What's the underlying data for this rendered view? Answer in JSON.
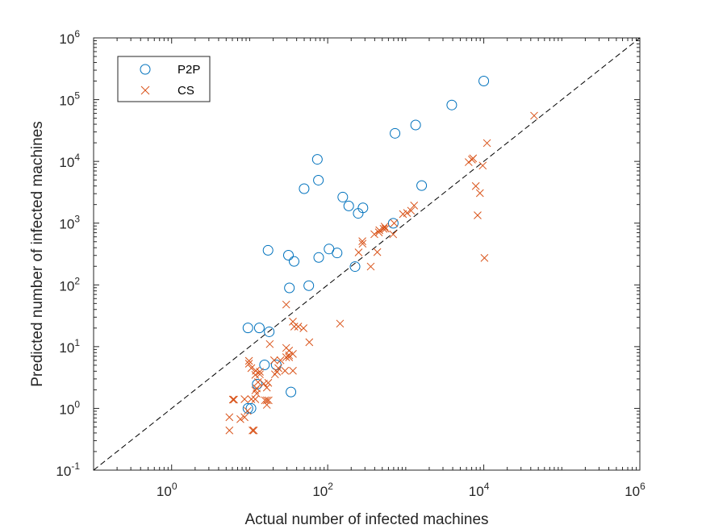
{
  "chart_data": {
    "type": "scatter",
    "title": "",
    "xlabel": "Actual number of infected machines",
    "ylabel": "Predicted number of infected machines",
    "xscale": "log",
    "yscale": "log",
    "xlim": [
      0.1,
      1000000
    ],
    "ylim": [
      0.1,
      1000000
    ],
    "x_tick_labels": [
      {
        "value": 1,
        "base": "10",
        "exp": "0"
      },
      {
        "value": 100,
        "base": "10",
        "exp": "2"
      },
      {
        "value": 10000,
        "base": "10",
        "exp": "4"
      },
      {
        "value": 1000000,
        "base": "10",
        "exp": "6"
      }
    ],
    "y_tick_labels": [
      {
        "value": 0.1,
        "base": "10",
        "exp": "-1"
      },
      {
        "value": 1,
        "base": "10",
        "exp": "0"
      },
      {
        "value": 10,
        "base": "10",
        "exp": "1"
      },
      {
        "value": 100,
        "base": "10",
        "exp": "2"
      },
      {
        "value": 1000,
        "base": "10",
        "exp": "3"
      },
      {
        "value": 10000,
        "base": "10",
        "exp": "4"
      },
      {
        "value": 100000,
        "base": "10",
        "exp": "5"
      },
      {
        "value": 1000000,
        "base": "10",
        "exp": "6"
      }
    ],
    "reference_line": {
      "style": "dashed",
      "color": "#000000",
      "from": [
        0.1,
        0.1
      ],
      "to": [
        1000000,
        1000000
      ]
    },
    "legend": {
      "position": "top-left"
    },
    "series": [
      {
        "name": "P2P",
        "marker": "circle",
        "color": "#0072bd",
        "points": [
          [
            9.5,
            1.0
          ],
          [
            10.4,
            1.0
          ],
          [
            9.5,
            20.1
          ],
          [
            13.3,
            20.1
          ],
          [
            17.8,
            17.4
          ],
          [
            15.5,
            5.06
          ],
          [
            21.9,
            5.06
          ],
          [
            12.5,
            2.47
          ],
          [
            33.8,
            1.84
          ],
          [
            17.2,
            363
          ],
          [
            31.4,
            302
          ],
          [
            37.1,
            240
          ],
          [
            32.3,
            89.5
          ],
          [
            57.2,
            97.1
          ],
          [
            49.9,
            3610
          ],
          [
            73.7,
            10800
          ],
          [
            76.0,
            4960
          ],
          [
            76.7,
            278
          ],
          [
            104,
            381
          ],
          [
            132,
            329
          ],
          [
            156,
            2640
          ],
          [
            186,
            1900
          ],
          [
            224,
            198
          ],
          [
            246,
            1440
          ],
          [
            283,
            1770
          ],
          [
            692,
            996
          ],
          [
            729,
            28500
          ],
          [
            1340,
            38900
          ],
          [
            1600,
            4060
          ],
          [
            3890,
            81900
          ],
          [
            10000,
            200000
          ]
        ]
      },
      {
        "name": "CS",
        "marker": "x",
        "color": "#d95319",
        "points": [
          [
            5.5,
            0.72
          ],
          [
            5.5,
            0.44
          ],
          [
            6.1,
            1.39
          ],
          [
            6.3,
            1.39
          ],
          [
            7.6,
            0.67
          ],
          [
            8.6,
            0.72
          ],
          [
            8.6,
            1.41
          ],
          [
            9.8,
            5.88
          ],
          [
            9.4,
            0.91
          ],
          [
            9.8,
            5.3
          ],
          [
            10.5,
            4.49
          ],
          [
            10.5,
            1.41
          ],
          [
            10.9,
            0.44
          ],
          [
            11.3,
            0.44
          ],
          [
            11.8,
            1.41
          ],
          [
            11.8,
            3.49
          ],
          [
            11.8,
            1.96
          ],
          [
            12.0,
            4.07
          ],
          [
            12.3,
            1.73
          ],
          [
            12.3,
            2.11
          ],
          [
            12.8,
            2.66
          ],
          [
            13.5,
            3.92
          ],
          [
            13.5,
            3.56
          ],
          [
            15.2,
            2.51
          ],
          [
            15.7,
            1.35
          ],
          [
            16.6,
            1.14
          ],
          [
            16.6,
            1.35
          ],
          [
            16.6,
            2.17
          ],
          [
            17.5,
            1.35
          ],
          [
            17.3,
            2.59
          ],
          [
            18.1,
            11.0
          ],
          [
            20.6,
            6.01
          ],
          [
            21.1,
            3.56
          ],
          [
            22.4,
            3.92
          ],
          [
            23.3,
            4.49
          ],
          [
            24.8,
            6.01
          ],
          [
            28.4,
            4.07
          ],
          [
            29.4,
            9.54
          ],
          [
            29.4,
            48.0
          ],
          [
            29.4,
            6.73
          ],
          [
            32.0,
            8.63
          ],
          [
            32.0,
            7.25
          ],
          [
            32.0,
            6.73
          ],
          [
            35.8,
            7.63
          ],
          [
            35.8,
            4.07
          ],
          [
            35.8,
            25.4
          ],
          [
            37.3,
            21.1
          ],
          [
            41.9,
            21.1
          ],
          [
            49.0,
            19.9
          ],
          [
            58.1,
            11.8
          ],
          [
            144,
            23.6
          ],
          [
            249,
            336
          ],
          [
            278,
            510
          ],
          [
            280,
            465
          ],
          [
            356,
            198
          ],
          [
            396,
            662
          ],
          [
            432,
            340
          ],
          [
            452,
            710
          ],
          [
            459,
            767
          ],
          [
            520,
            810
          ],
          [
            536,
            877
          ],
          [
            552,
            815
          ],
          [
            690,
            659
          ],
          [
            710,
            1000
          ],
          [
            922,
            1400
          ],
          [
            1040,
            1460
          ],
          [
            1170,
            1590
          ],
          [
            1280,
            1930
          ],
          [
            6400,
            9730
          ],
          [
            7050,
            10700
          ],
          [
            7290,
            11200
          ],
          [
            7900,
            3980
          ],
          [
            8340,
            1340
          ],
          [
            8930,
            3060
          ],
          [
            9700,
            8560
          ],
          [
            10200,
            273
          ],
          [
            11000,
            19800
          ],
          [
            44200,
            55000
          ]
        ]
      }
    ]
  }
}
